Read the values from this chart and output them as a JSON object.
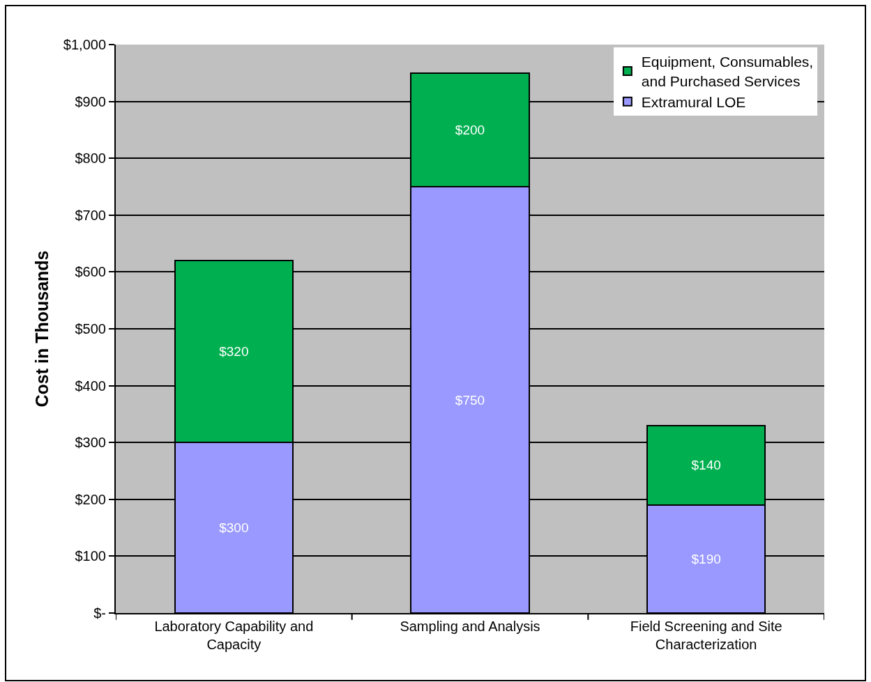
{
  "chart_data": {
    "type": "bar",
    "stacked": true,
    "ylabel": "Cost in Thousands",
    "categories": [
      "Laboratory Capability and Capacity",
      "Sampling and Analysis",
      "Field Screening and Site Characterization"
    ],
    "series": [
      {
        "name": "Extramural LOE",
        "color": "#9999ff",
        "values": [
          300,
          750,
          190
        ],
        "value_labels": [
          "$300",
          "$750",
          "$190"
        ]
      },
      {
        "name": "Equipment, Consumables, and Purchased Services",
        "color": "#00b050",
        "values": [
          320,
          200,
          140
        ],
        "value_labels": [
          "$320",
          "$200",
          "$140"
        ]
      }
    ],
    "ylim": [
      0,
      1000
    ],
    "yticks": [
      {
        "value": 0,
        "label": "$-"
      },
      {
        "value": 100,
        "label": "$100"
      },
      {
        "value": 200,
        "label": "$200"
      },
      {
        "value": 300,
        "label": "$300"
      },
      {
        "value": 400,
        "label": "$400"
      },
      {
        "value": 500,
        "label": "$500"
      },
      {
        "value": 600,
        "label": "$600"
      },
      {
        "value": 700,
        "label": "$700"
      },
      {
        "value": 800,
        "label": "$800"
      },
      {
        "value": 900,
        "label": "$900"
      },
      {
        "value": 1000,
        "label": "$1,000"
      }
    ],
    "grid": "y",
    "legend": "top right"
  }
}
